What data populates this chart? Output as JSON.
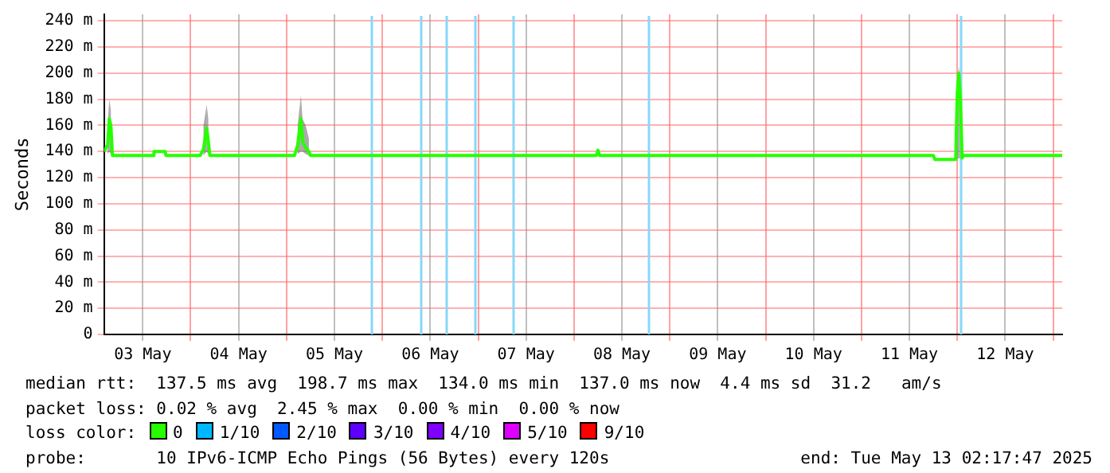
{
  "chart_data": {
    "type": "line",
    "ylabel": "Seconds",
    "legend_title": "loss color:",
    "legend": "bottom",
    "grid": true,
    "marker": "none",
    "line_style": "solid",
    "xlim": [
      "--05-03T02:17",
      "--05-13T02:17"
    ],
    "xticks": [
      {
        "value": "--05-03T12:00",
        "label": "03 May"
      },
      {
        "value": "--05-04T00:00",
        "label": null
      },
      {
        "value": "--05-04T12:00",
        "label": "04 May"
      },
      {
        "value": "--05-05T00:00",
        "label": null
      },
      {
        "value": "--05-05T12:00",
        "label": "05 May"
      },
      {
        "value": "--05-06T00:00",
        "label": null
      },
      {
        "value": "--05-06T12:00",
        "label": "06 May"
      },
      {
        "value": "--05-07T00:00",
        "label": null
      },
      {
        "value": "--05-07T12:00",
        "label": "07 May"
      },
      {
        "value": "--05-08T00:00",
        "label": null
      },
      {
        "value": "--05-08T12:00",
        "label": "08 May"
      },
      {
        "value": "--05-09T00:00",
        "label": null
      },
      {
        "value": "--05-09T12:00",
        "label": "09 May"
      },
      {
        "value": "--05-10T00:00",
        "label": null
      },
      {
        "value": "--05-10T12:00",
        "label": "10 May"
      },
      {
        "value": "--05-11T00:00",
        "label": null
      },
      {
        "value": "--05-11T12:00",
        "label": "11 May"
      },
      {
        "value": "--05-12T00:00",
        "label": null
      },
      {
        "value": "--05-12T12:00",
        "label": "12 May"
      },
      {
        "value": "--05-13T00:00",
        "label": null
      }
    ],
    "ylim": [
      0,
      245
    ],
    "yticks": [
      0,
      {
        "value": 20,
        "label": "20 m"
      },
      {
        "value": 40,
        "label": "40 m"
      },
      {
        "value": 60,
        "label": "60 m"
      },
      {
        "value": 80,
        "label": "80 m"
      },
      {
        "value": 100,
        "label": "100 m"
      },
      {
        "value": 120,
        "label": "120 m"
      },
      {
        "value": 140,
        "label": "140 m"
      },
      {
        "value": 160,
        "label": "160 m"
      },
      {
        "value": 180,
        "label": "180 m"
      },
      {
        "value": 200,
        "label": "200 m"
      },
      {
        "value": 220,
        "label": "220 m"
      },
      {
        "value": 240,
        "label": "240 m"
      }
    ],
    "x": [
      "--05-03T02:17",
      "--05-03T03:12",
      "--05-03T03:36",
      "--05-03T04:00",
      "--05-03T04:24",
      "--05-03T14:36",
      "--05-03T14:48",
      "--05-03T17:36",
      "--05-03T17:48",
      "--05-04T02:24",
      "--05-04T03:12",
      "--05-04T04:00",
      "--05-04T04:24",
      "--05-04T04:48",
      "--05-05T02:00",
      "--05-05T02:48",
      "--05-05T03:36",
      "--05-05T04:00",
      "--05-05T04:48",
      "--05-05T05:36",
      "--05-05T06:00",
      "--05-08T05:36",
      "--05-08T06:00",
      "--05-08T06:24",
      "--05-11T18:00",
      "--05-11T18:24",
      "--05-11T23:36",
      "--05-12T00:00",
      "--05-12T00:24",
      "--05-12T00:48",
      "--05-12T01:12",
      "--05-12T01:36",
      "--05-13T02:17"
    ],
    "series": [
      {
        "name": "0",
        "color": "#26ff00",
        "values": [
          140,
          145,
          165,
          160,
          137,
          137,
          140,
          140,
          137,
          137,
          142,
          158,
          148,
          137,
          137,
          145,
          165,
          148,
          143,
          140,
          137,
          137,
          141,
          137,
          137,
          134,
          134,
          185,
          200,
          180,
          135,
          137,
          137
        ],
        "lower": [
          null,
          138,
          140,
          138,
          null,
          null,
          null,
          null,
          null,
          null,
          137,
          140,
          138,
          null,
          null,
          138,
          140,
          140,
          138,
          137,
          null,
          null,
          null,
          null,
          null,
          null,
          null,
          134,
          135,
          134,
          null,
          null,
          null
        ],
        "upper": [
          null,
          160,
          180,
          172,
          null,
          null,
          null,
          null,
          null,
          null,
          160,
          176,
          165,
          null,
          null,
          160,
          183,
          165,
          160,
          150,
          null,
          null,
          null,
          null,
          null,
          null,
          null,
          195,
          205,
          190,
          null,
          null,
          null
        ]
      },
      {
        "name": "1/10",
        "color": "#00b8ff",
        "values": [
          null,
          null,
          null,
          null,
          null,
          null,
          null,
          null,
          null,
          null,
          null,
          null,
          null,
          null,
          null,
          null,
          null,
          null,
          null,
          null,
          null,
          null,
          null,
          null,
          null,
          null,
          null,
          null,
          null,
          null,
          null,
          null,
          null
        ]
      },
      {
        "name": "2/10",
        "color": "#0059ff",
        "values": [
          null,
          null,
          null,
          null,
          null,
          null,
          null,
          null,
          null,
          null,
          null,
          null,
          null,
          null,
          null,
          null,
          null,
          null,
          null,
          null,
          null,
          null,
          null,
          null,
          null,
          null,
          null,
          null,
          null,
          null,
          null,
          null,
          null
        ]
      },
      {
        "name": "3/10",
        "color": "#5e00ff",
        "values": [
          null,
          null,
          null,
          null,
          null,
          null,
          null,
          null,
          null,
          null,
          null,
          null,
          null,
          null,
          null,
          null,
          null,
          null,
          null,
          null,
          null,
          null,
          null,
          null,
          null,
          null,
          null,
          null,
          null,
          null,
          null,
          null,
          null
        ]
      },
      {
        "name": "4/10",
        "color": "#7e00ff",
        "values": [
          null,
          null,
          null,
          null,
          null,
          null,
          null,
          null,
          null,
          null,
          null,
          null,
          null,
          null,
          null,
          null,
          null,
          null,
          null,
          null,
          null,
          null,
          null,
          null,
          null,
          null,
          null,
          null,
          null,
          null,
          null,
          null,
          null
        ]
      },
      {
        "name": "5/10",
        "color": "#dd00ff",
        "values": [
          null,
          null,
          null,
          null,
          null,
          null,
          null,
          null,
          null,
          null,
          null,
          null,
          null,
          null,
          null,
          null,
          null,
          null,
          null,
          null,
          null,
          null,
          null,
          null,
          null,
          null,
          null,
          null,
          null,
          null,
          null,
          null,
          null
        ]
      },
      {
        "name": "9/10",
        "color": "#ff0000",
        "values": [
          null,
          null,
          null,
          null,
          null,
          null,
          null,
          null,
          null,
          null,
          null,
          null,
          null,
          null,
          null,
          null,
          null,
          null,
          null,
          null,
          null,
          null,
          null,
          null,
          null,
          null,
          null,
          null,
          null,
          null,
          null,
          null,
          null
        ]
      }
    ],
    "ref_lines": [
      {
        "axis": "x",
        "value": "--05-05T21:12",
        "color": "#88d8f8"
      },
      {
        "axis": "x",
        "value": "--05-06T09:36",
        "color": "#88d8f8"
      },
      {
        "axis": "x",
        "value": "--05-06T16:00",
        "color": "#88d8f8"
      },
      {
        "axis": "x",
        "value": "--05-06T23:12",
        "color": "#88d8f8"
      },
      {
        "axis": "x",
        "value": "--05-07T08:48",
        "color": "#88d8f8"
      },
      {
        "axis": "x",
        "value": "--05-08T18:24",
        "color": "#88d8f8"
      },
      {
        "axis": "x",
        "value": "--05-12T00:48",
        "color": "#88d8f8"
      }
    ],
    "annotations": [
      "median rtt:  137.5 ms avg  198.7 ms max  134.0 ms min  137.0 ms now  4.4 ms sd  31.2   am/s",
      "packet loss: 0.02 % avg  2.45 % max  0.00 % min  0.00 % now",
      "probe:       10 IPv6-ICMP Echo Pings (56 Bytes) every 120s",
      "end: Tue May 13 02:17:47 2025"
    ]
  }
}
